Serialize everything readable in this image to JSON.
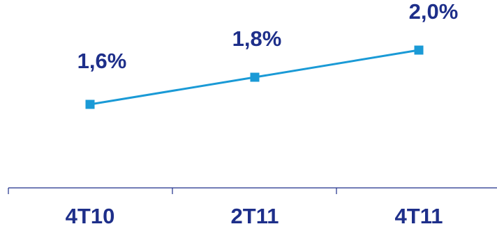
{
  "chart_data": {
    "type": "line",
    "title": "",
    "xlabel": "",
    "ylabel": "",
    "categories": [
      "4T10",
      "2T11",
      "4T11"
    ],
    "series": [
      {
        "values": [
          1.6,
          1.8,
          2.0
        ]
      }
    ],
    "data_labels": [
      "1,6%",
      "1,8%",
      "2,0%"
    ],
    "y_unit": "%",
    "grid": false,
    "legend": "none",
    "colors": {
      "line": "#1a9ad6",
      "marker": "#1a9ad6",
      "label_text": "#1e2f8a",
      "axis": "#1e2f8a"
    }
  }
}
